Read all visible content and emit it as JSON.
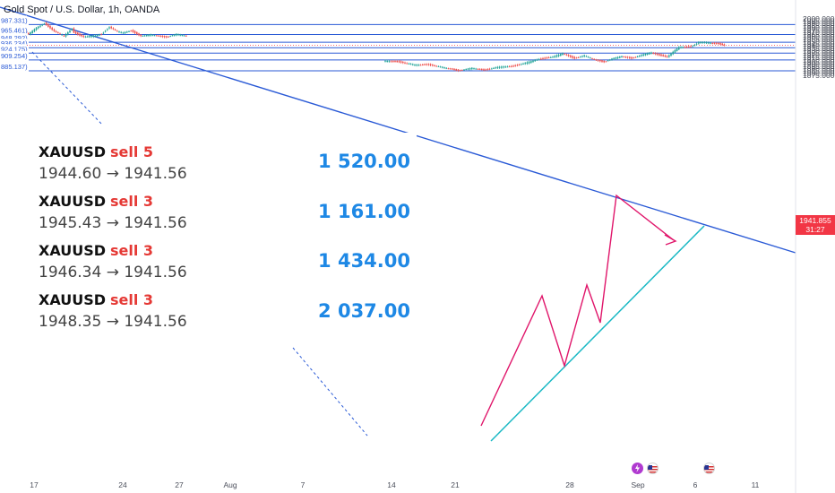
{
  "header": {
    "title": "Gold Spot / U.S. Dollar, 1h, OANDA"
  },
  "price_axis": {
    "ticks": [
      "1995.000",
      "1990.000",
      "1985.000",
      "1980.000",
      "1975.000",
      "1970.000",
      "1965.000",
      "1960.000",
      "1955.000",
      "1950.000",
      "1945.000",
      "1940.000",
      "1935.000",
      "1930.000",
      "1925.000",
      "1920.000",
      "1915.000",
      "1910.000",
      "1905.000",
      "1900.000",
      "1895.000",
      "1890.000",
      "1885.000",
      "1880.000",
      "1875.000",
      "2000.000"
    ],
    "current_price": "1941.855",
    "countdown": "31:27"
  },
  "time_axis": {
    "labels": [
      "17",
      "24",
      "27",
      "Aug",
      "7",
      "14",
      "21",
      "28",
      "Sep",
      "6",
      "11"
    ]
  },
  "level_labels": [
    "987.331)",
    "965.461)",
    "948.292)",
    "936.234)",
    "924.175)",
    "909.254)",
    "885.137)"
  ],
  "trades": [
    {
      "symbol": "XAUUSD",
      "action": "sell 5",
      "prices": "1944.60 → 1941.56"
    },
    {
      "symbol": "XAUUSD",
      "action": "sell 3",
      "prices": "1945.43 → 1941.56"
    },
    {
      "symbol": "XAUUSD",
      "action": "sell 3",
      "prices": "1946.34 → 1941.56"
    },
    {
      "symbol": "XAUUSD",
      "action": "sell 3",
      "prices": "1948.35 → 1941.56"
    }
  ],
  "pnl": [
    "1 520.00",
    "1 161.00",
    "1 434.00",
    "2 037.00"
  ],
  "events": [
    "lightning-event-icon",
    "us-flag-icon",
    "us-flag-icon"
  ],
  "colors": {
    "level_line": "#2a5ad6",
    "trendline": "#2a5ad6",
    "support_line": "#19b8c4",
    "zigzag": "#e0156a",
    "candle_up": "#26a69a",
    "candle_down": "#ef5350",
    "current_price": "#f23645",
    "profit_text": "#1e88e5",
    "sell_text": "#e53935"
  },
  "chart_data": {
    "type": "candlestick",
    "symbol": "Gold Spot / U.S. Dollar",
    "timeframe": "1h",
    "source": "OANDA",
    "ylim": [
      1875,
      2000
    ],
    "horizontal_levels": [
      1987.331,
      1965.461,
      1948.292,
      1936.234,
      1924.175,
      1909.254,
      1885.137
    ],
    "current_price": 1941.855,
    "x_ticks": [
      "17",
      "24",
      "27",
      "Aug",
      "7",
      "14",
      "21",
      "28",
      "Sep",
      "6",
      "11"
    ],
    "price_path": [
      [
        0,
        1957
      ],
      [
        5,
        1983
      ],
      [
        10,
        1966
      ],
      [
        14,
        1980
      ],
      [
        18,
        1990
      ],
      [
        23,
        1973
      ],
      [
        28,
        1962
      ],
      [
        32,
        1978
      ],
      [
        33,
        1970
      ],
      [
        38,
        1960
      ],
      [
        43,
        1962
      ],
      [
        47,
        1966
      ],
      [
        51,
        1982
      ],
      [
        55,
        1972
      ],
      [
        58,
        1969
      ],
      [
        62,
        1974
      ],
      [
        67,
        1962
      ],
      [
        72,
        1965
      ],
      [
        76,
        1962
      ],
      [
        80,
        1960
      ],
      [
        85,
        1966
      ],
      [
        90,
        1962
      ],
      [
        120,
        1965
      ],
      [
        140,
        1965
      ],
      [
        160,
        1962
      ],
      [
        190,
        1907
      ],
      [
        198,
        1905
      ],
      [
        206,
        1898
      ],
      [
        213,
        1899
      ],
      [
        220,
        1893
      ],
      [
        228,
        1886
      ],
      [
        235,
        1891
      ],
      [
        241,
        1887
      ],
      [
        248,
        1893
      ],
      [
        255,
        1895
      ],
      [
        262,
        1902
      ],
      [
        269,
        1911
      ],
      [
        276,
        1916
      ],
      [
        281,
        1923
      ],
      [
        287,
        1913
      ],
      [
        292,
        1919
      ],
      [
        297,
        1910
      ],
      [
        302,
        1905
      ],
      [
        306,
        1912
      ],
      [
        311,
        1917
      ],
      [
        316,
        1913
      ],
      [
        321,
        1920
      ],
      [
        326,
        1925
      ],
      [
        330,
        1920
      ],
      [
        334,
        1916
      ],
      [
        340,
        1937
      ],
      [
        346,
        1938
      ],
      [
        350,
        1948
      ],
      [
        355,
        1947
      ],
      [
        360,
        1945
      ],
      [
        363,
        1942
      ]
    ]
  }
}
